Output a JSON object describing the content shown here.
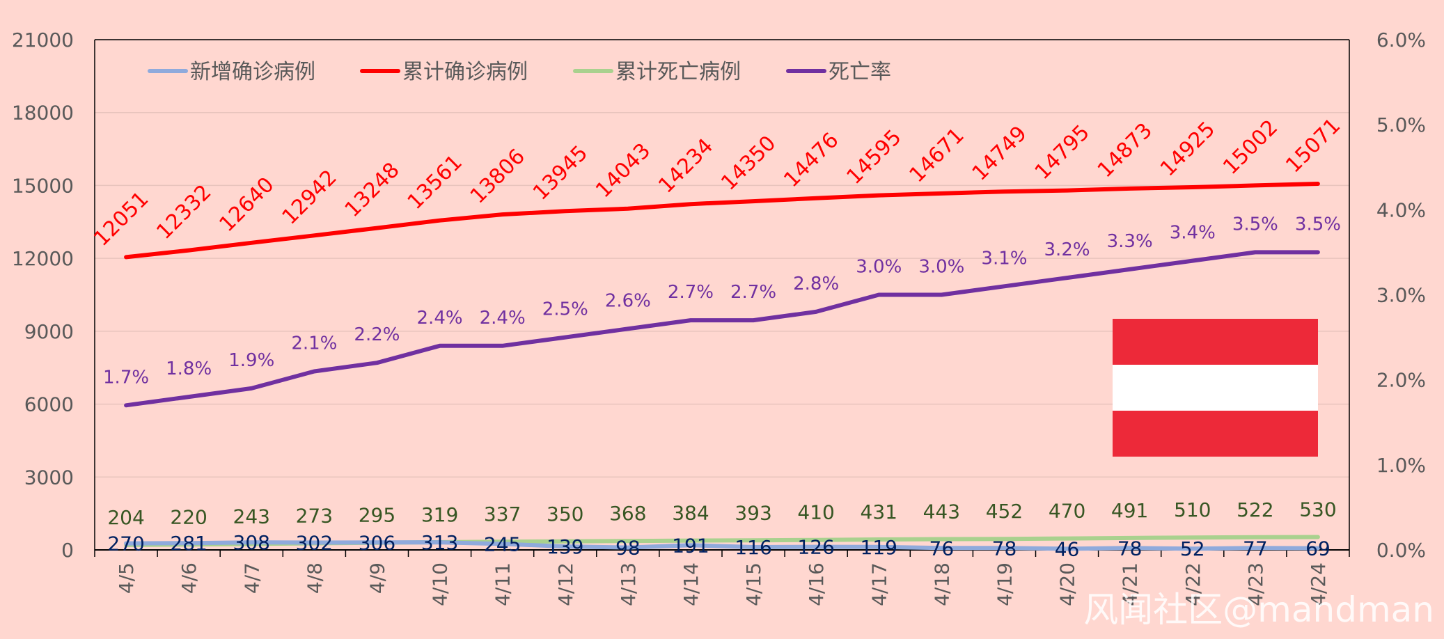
{
  "chart_data": {
    "type": "line",
    "categories": [
      "4/5",
      "4/6",
      "4/7",
      "4/8",
      "4/9",
      "4/10",
      "4/11",
      "4/12",
      "4/13",
      "4/14",
      "4/15",
      "4/16",
      "4/17",
      "4/18",
      "4/19",
      "4/20",
      "4/21",
      "4/22",
      "4/23",
      "4/24"
    ],
    "series": [
      {
        "name": "新增确诊病例",
        "axis": "left",
        "color": "#8faadc",
        "values": [
          270,
          281,
          308,
          302,
          306,
          313,
          245,
          139,
          98,
          191,
          116,
          126,
          119,
          76,
          78,
          46,
          78,
          52,
          77,
          69
        ]
      },
      {
        "name": "累计确诊病例",
        "axis": "left",
        "color": "#ff0000",
        "values": [
          12051,
          12332,
          12640,
          12942,
          13248,
          13561,
          13806,
          13945,
          14043,
          14234,
          14350,
          14476,
          14595,
          14671,
          14749,
          14795,
          14873,
          14925,
          15002,
          15071
        ]
      },
      {
        "name": "累计死亡病例",
        "axis": "left",
        "color": "#a9d18e",
        "values": [
          204,
          220,
          243,
          273,
          295,
          319,
          337,
          350,
          368,
          384,
          393,
          410,
          431,
          443,
          452,
          470,
          491,
          510,
          522,
          530
        ]
      },
      {
        "name": "死亡率",
        "axis": "right",
        "color": "#7030a0",
        "values": [
          1.7,
          1.8,
          1.9,
          2.1,
          2.2,
          2.4,
          2.4,
          2.5,
          2.6,
          2.7,
          2.7,
          2.8,
          3.0,
          3.0,
          3.1,
          3.2,
          3.3,
          3.4,
          3.5,
          3.5
        ],
        "labels": [
          "1.7%",
          "1.8%",
          "1.9%",
          "2.1%",
          "2.2%",
          "2.4%",
          "2.4%",
          "2.5%",
          "2.6%",
          "2.7%",
          "2.7%",
          "2.8%",
          "3.0%",
          "3.0%",
          "3.1%",
          "3.2%",
          "3.3%",
          "3.4%",
          "3.5%",
          "3.5%"
        ]
      }
    ],
    "y_left": {
      "range": [
        0,
        21000
      ],
      "ticks": [
        "0",
        "3000",
        "6000",
        "9000",
        "12000",
        "15000",
        "18000",
        "21000"
      ]
    },
    "y_right": {
      "range": [
        0,
        6
      ],
      "ticks": [
        "0.0%",
        "1.0%",
        "2.0%",
        "3.0%",
        "4.0%",
        "5.0%",
        "6.0%"
      ]
    },
    "grid": true,
    "legend": "top-left",
    "flag_colors": [
      "#ed2939",
      "#ffffff",
      "#ed2939"
    ],
    "background": "#ffd7d0",
    "watermark": "风闻社区@mandman"
  }
}
